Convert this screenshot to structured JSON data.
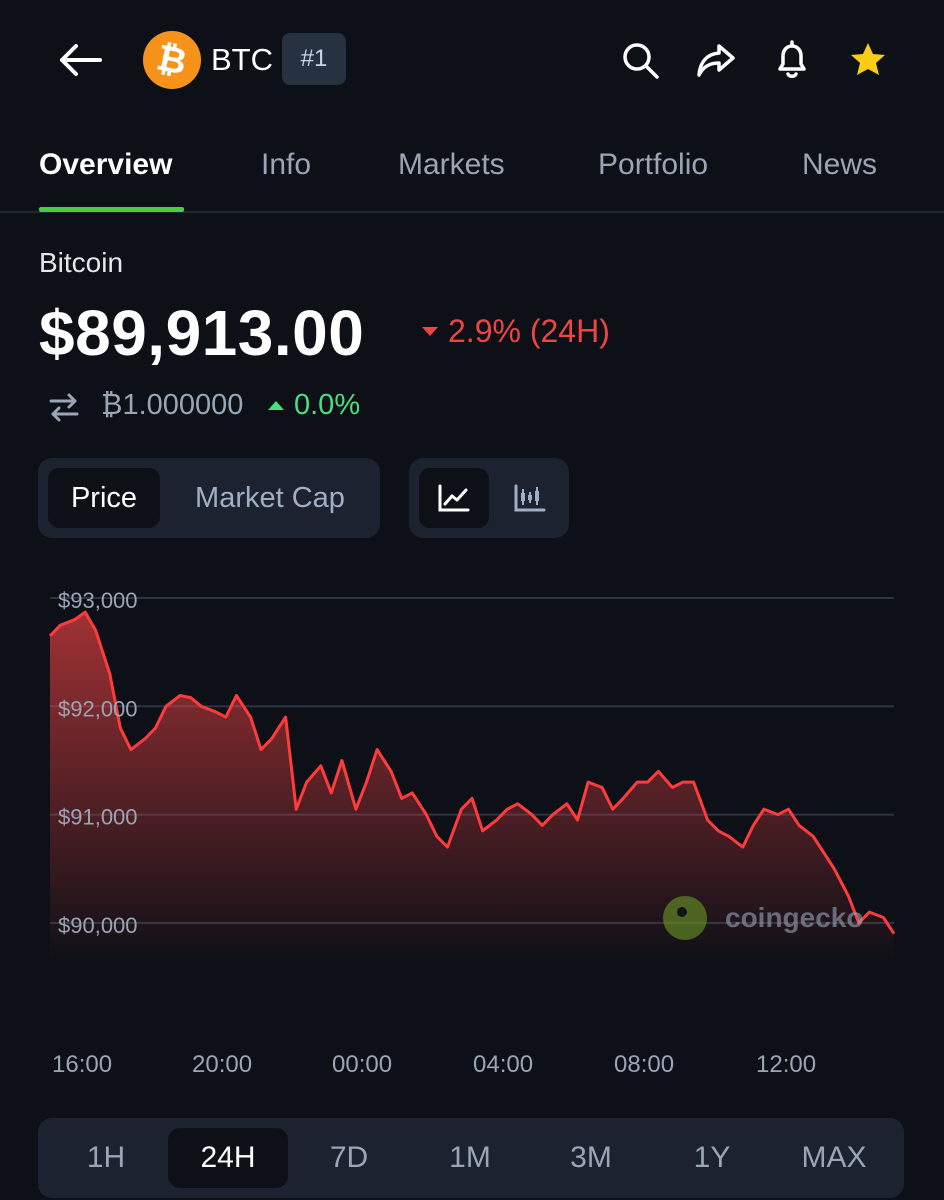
{
  "header": {
    "ticker": "BTC",
    "rank": "#1",
    "coin_logo_glyph": "₿",
    "icons": [
      "back-arrow-icon",
      "search-icon",
      "share-icon",
      "bell-icon",
      "star-icon"
    ],
    "star_color": "#facc15"
  },
  "tabs": [
    {
      "label": "Overview"
    },
    {
      "label": "Info"
    },
    {
      "label": "Markets"
    },
    {
      "label": "Portfolio"
    },
    {
      "label": "News"
    }
  ],
  "coin": {
    "name": "Bitcoin",
    "price": "$89,913.00",
    "change_24h": "2.9% (24H)",
    "btc_rate": "₿1.000000",
    "btc_change": "0.0%"
  },
  "toggles": {
    "price": "Price",
    "market_cap": "Market Cap",
    "chart_type_icons": [
      "line-chart-icon",
      "candlestick-icon"
    ]
  },
  "watermark": "coingecko",
  "ranges": [
    "1H",
    "24H",
    "7D",
    "1M",
    "3M",
    "1Y",
    "MAX"
  ],
  "colors": {
    "background": "#0d1017",
    "accent_green": "#4bcc3d",
    "down_red": "#ef4444",
    "up_green": "#4ade80",
    "btc_orange": "#f7931a"
  },
  "chart_data": {
    "type": "area",
    "title": "",
    "xlabel": "",
    "ylabel": "",
    "x_tick_labels": [
      "16:00",
      "20:00",
      "00:00",
      "04:00",
      "08:00",
      "12:00"
    ],
    "y_tick_labels": [
      "$93,000",
      "$92,000",
      "$91,000",
      "$90,000"
    ],
    "ylim": [
      89600,
      93100
    ],
    "x_hours_since_start": [
      0,
      0.3,
      0.7,
      1.0,
      1.3,
      1.7,
      2.0,
      2.3,
      2.7,
      3.0,
      3.3,
      3.7,
      4.0,
      4.3,
      4.7,
      5.0,
      5.3,
      5.7,
      6.0,
      6.3,
      6.7,
      7.0,
      7.3,
      7.7,
      8.0,
      8.3,
      8.7,
      9.0,
      9.3,
      9.7,
      10.0,
      10.3,
      10.7,
      11.0,
      11.3,
      11.7,
      12.0,
      12.3,
      12.7,
      13.0,
      13.3,
      13.7,
      14.0,
      14.3,
      14.7,
      15.0,
      15.3,
      15.7,
      16.0,
      16.3,
      16.7,
      17.0,
      17.3,
      17.7,
      18.0,
      18.3,
      18.7,
      19.0,
      19.3,
      19.7,
      20.0,
      20.3,
      20.7,
      21.0,
      21.3,
      21.7,
      22.0,
      22.3,
      22.7,
      23.0,
      23.3,
      23.7,
      24.0
    ],
    "series": [
      {
        "values": [
          92650,
          92750,
          92800,
          92870,
          92700,
          92300,
          91800,
          91600,
          91700,
          91800,
          92000,
          92100,
          92080,
          92000,
          91950,
          91900,
          92100,
          91900,
          91600,
          91700,
          91900,
          91050,
          91300,
          91450,
          91200,
          91500,
          91050,
          91300,
          91600,
          91400,
          91150,
          91200,
          91000,
          90800,
          90700,
          91050,
          91150,
          90850,
          90950,
          91050,
          91100,
          91000,
          90900,
          91000,
          91100,
          90950,
          91300,
          91250,
          91050,
          91150,
          91300,
          91300,
          91400,
          91250,
          91300,
          91300,
          90950,
          90850,
          90800,
          90700,
          90900,
          91050,
          91000,
          91050,
          90900,
          90800,
          90650,
          90500,
          90250,
          90000,
          90100,
          90050,
          89900
        ]
      }
    ],
    "grid": true,
    "legend": "none"
  }
}
